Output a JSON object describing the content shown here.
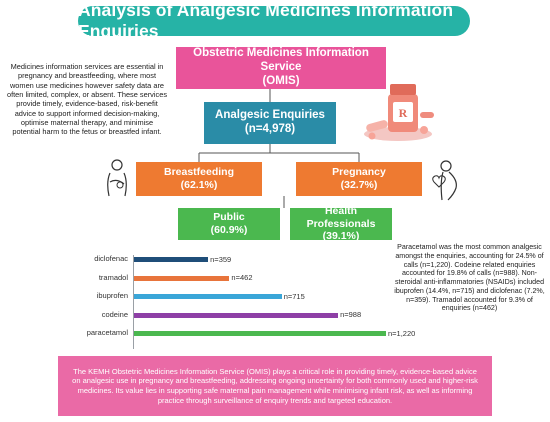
{
  "title": "Analysis of Analgesic Medicines Information Enquiries",
  "intro_text": "Medicines information services are essential in pregnancy and breastfeeding, where most women use medicines however safety data are often limited, complex, or absent. These services provide timely, evidence-based, risk-benefit advice to support informed decision-making, optimise maternal therapy, and minimise potential harm to the fetus or breastfed infant.",
  "omis": {
    "line1": "Obstetric Medicines Information Service",
    "line2": "(OMIS)"
  },
  "enquiries": {
    "line1": "Analgesic Enquiries",
    "line2": "(n=4,978)"
  },
  "breastfeeding": {
    "label": "Breastfeeding",
    "value": "(62.1%)"
  },
  "pregnancy": {
    "label": "Pregnancy",
    "value": "(32.7%)"
  },
  "public": {
    "label": "Public",
    "value": "(60.9%)"
  },
  "health_professionals": {
    "label": "Health Professionals",
    "value": "(39.1%)"
  },
  "side_note": "Paracetamol was the most common analgesic amongst the enquiries, accounting for 24.5% of calls (n=1,220). Codeine related enquiries accounted for 19.8% of calls (n=988). Non-steroidal anti-inflammatories (NSAIDs) included ibuprofen (14.4%, n=715) and diclofenac (7.2%, n=359). Tramadol accounted for 9.3% of enquiries (n=462)",
  "bottom_text": "The KEMH Obstetric Medicines Information Service (OMIS) plays a critical role in providing timely, evidence-based advice on analgesic use in pregnancy and breastfeeding, addressing ongoing uncertainty for both commonly used and higher-risk medicines. Its value lies in supporting safe maternal pain management while minimising infant risk, as well as informing practice through surveillance of enquiry trends and targeted education.",
  "colors": {
    "teal": "#26b3a6",
    "pink": "#e9549a",
    "blue": "#2a8ca7",
    "orange": "#ee7a31",
    "green": "#4bb84f",
    "bottom_pink": "#ea6aa6"
  },
  "icons": [
    "medicine-bottle-icon",
    "breastfeeding-mother-icon",
    "pregnant-woman-icon"
  ],
  "chart_data": {
    "type": "bar",
    "orientation": "horizontal",
    "categories": [
      "diclofenac",
      "tramadol",
      "ibuprofen",
      "codeine",
      "paracetamol"
    ],
    "values": [
      359,
      462,
      715,
      988,
      1220
    ],
    "value_labels": [
      "n=359",
      "n=462",
      "n=715",
      "n=988",
      "n=1,220"
    ],
    "colors": [
      "#1f4e79",
      "#e8743b",
      "#3aa6d8",
      "#8e3fa6",
      "#4bb84f"
    ],
    "xlim": [
      0,
      1220
    ]
  }
}
